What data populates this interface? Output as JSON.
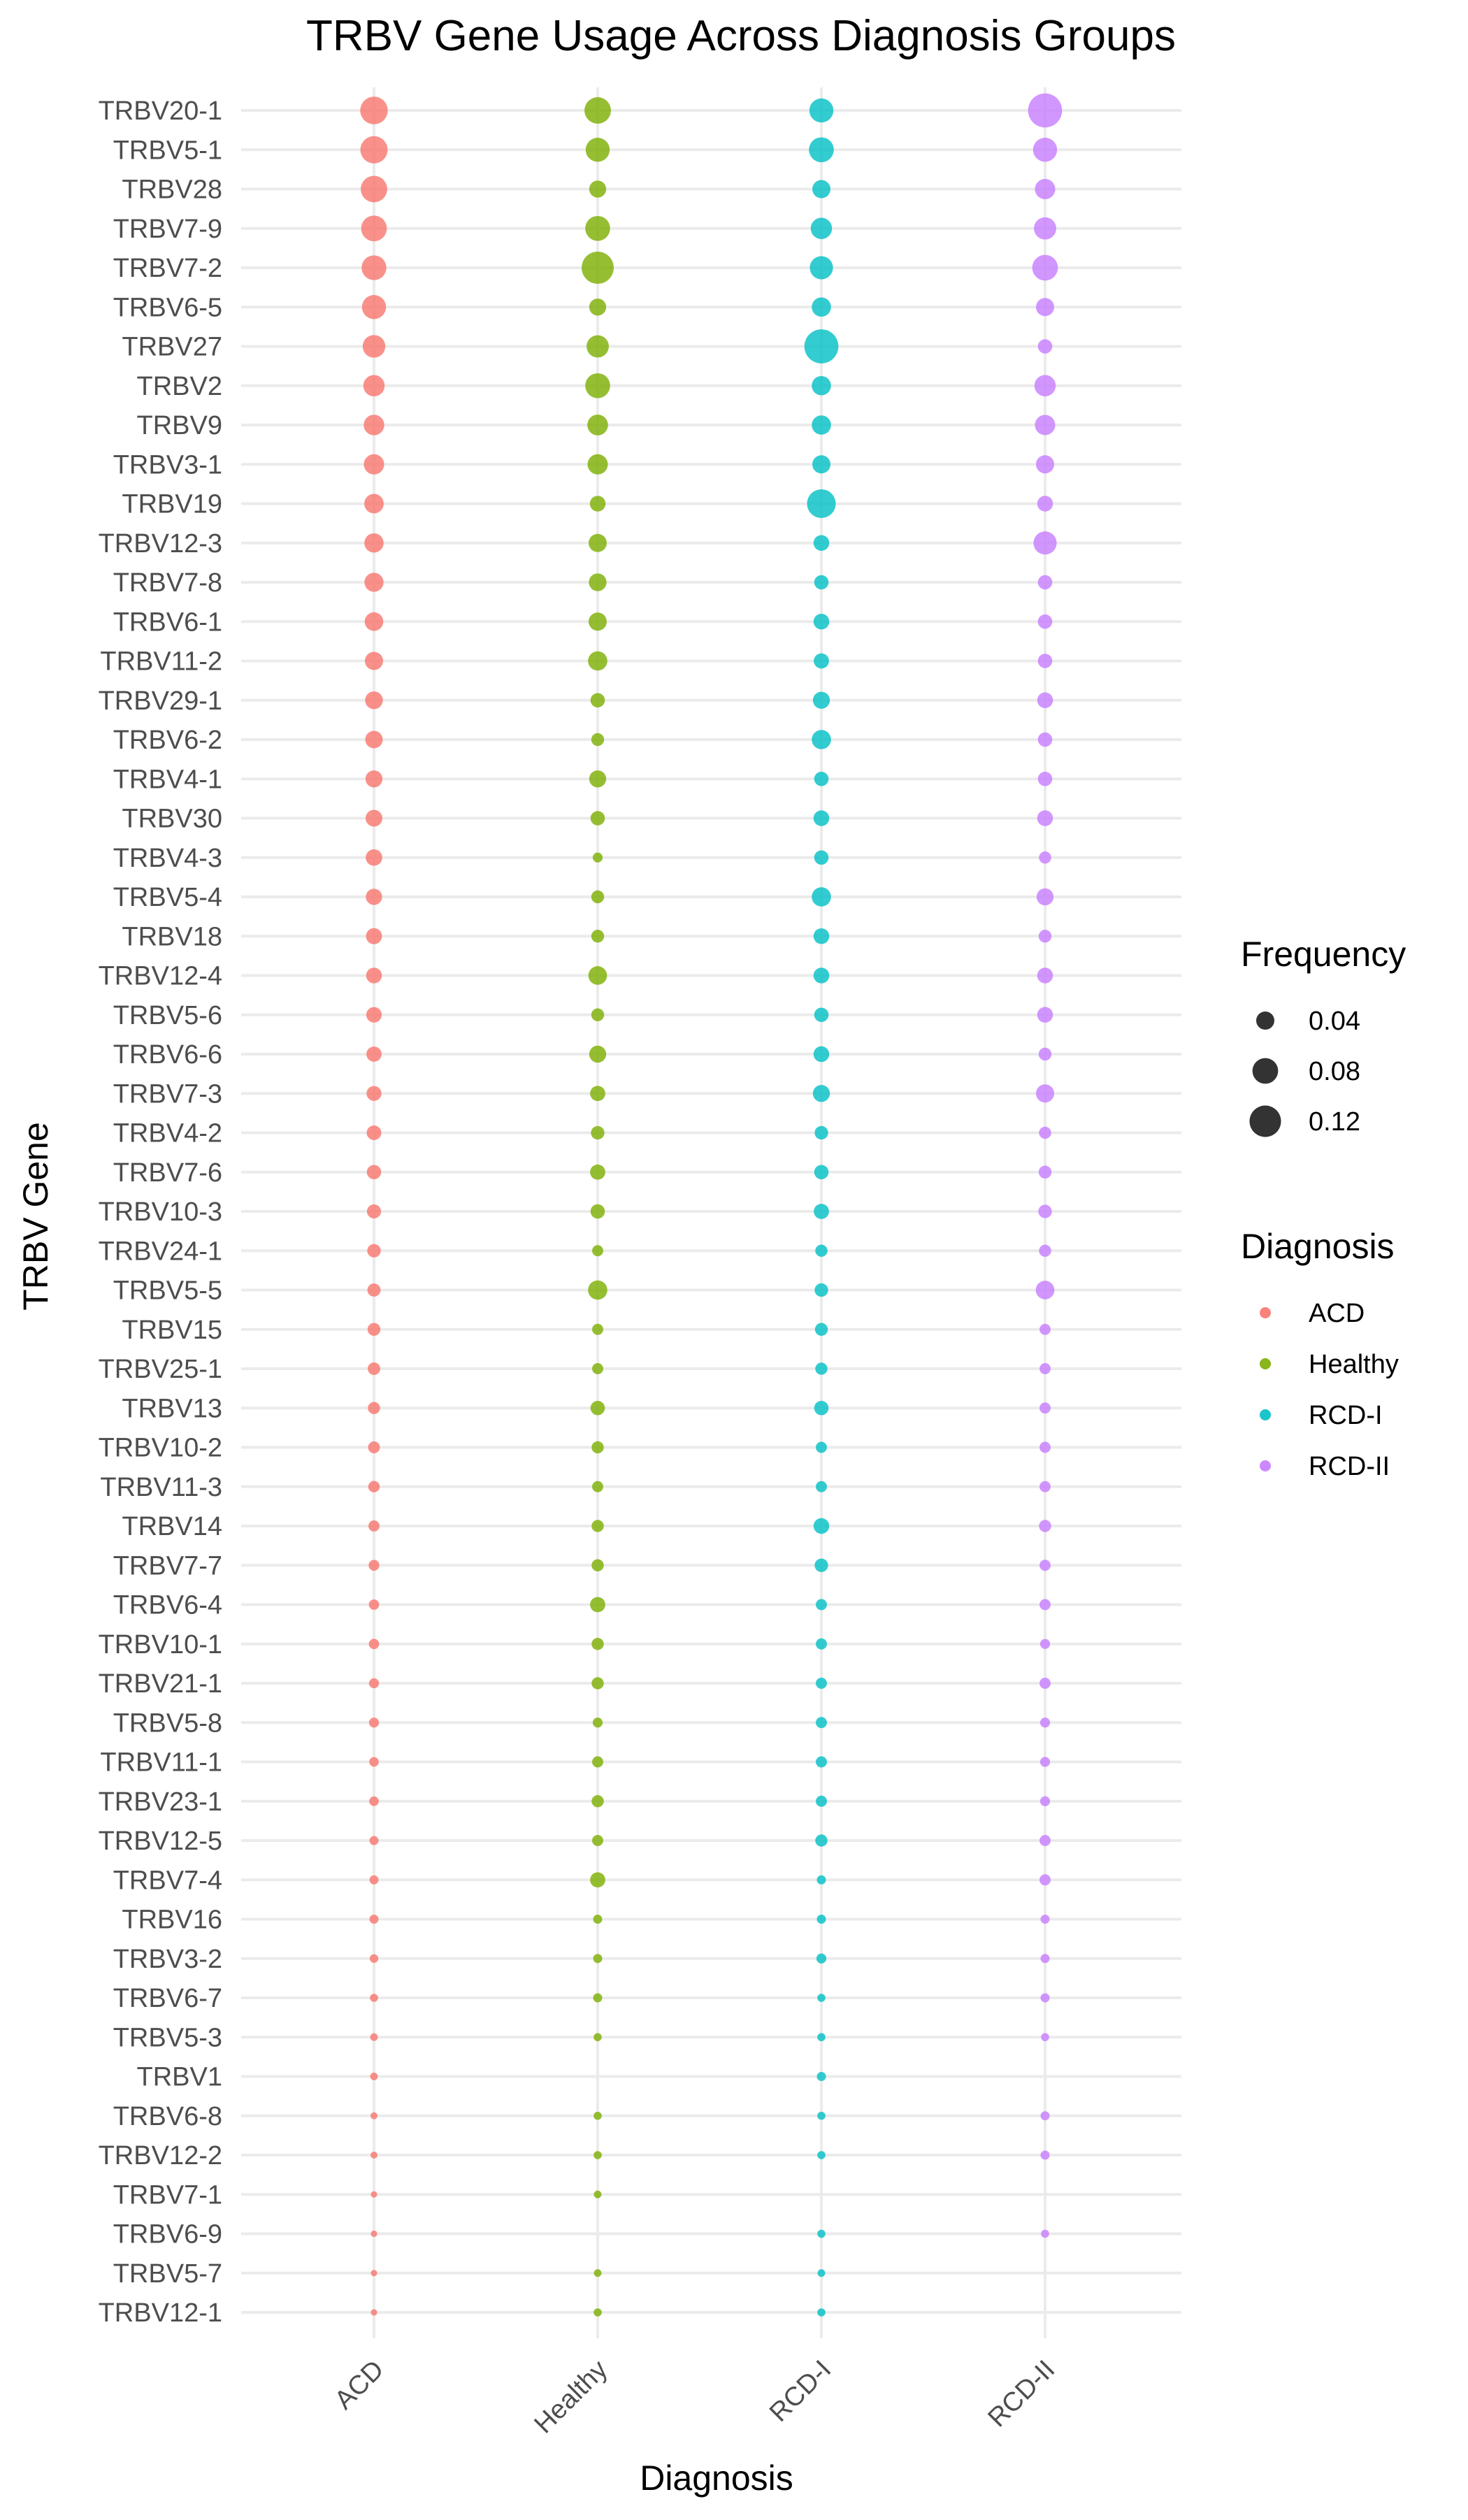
{
  "chart_data": {
    "type": "scatter",
    "title": "TRBV Gene Usage Across Diagnosis Groups",
    "xlabel": "Diagnosis",
    "ylabel": "TRBV Gene",
    "categories": [
      "ACD",
      "Healthy",
      "RCD-I",
      "RCD-II"
    ],
    "genes": [
      "TRBV20-1",
      "TRBV5-1",
      "TRBV28",
      "TRBV7-9",
      "TRBV7-2",
      "TRBV6-5",
      "TRBV27",
      "TRBV2",
      "TRBV9",
      "TRBV3-1",
      "TRBV19",
      "TRBV12-3",
      "TRBV7-8",
      "TRBV6-1",
      "TRBV11-2",
      "TRBV29-1",
      "TRBV6-2",
      "TRBV4-1",
      "TRBV30",
      "TRBV4-3",
      "TRBV5-4",
      "TRBV18",
      "TRBV12-4",
      "TRBV5-6",
      "TRBV6-6",
      "TRBV7-3",
      "TRBV4-2",
      "TRBV7-6",
      "TRBV10-3",
      "TRBV24-1",
      "TRBV5-5",
      "TRBV15",
      "TRBV25-1",
      "TRBV13",
      "TRBV10-2",
      "TRBV11-3",
      "TRBV14",
      "TRBV7-7",
      "TRBV6-4",
      "TRBV10-1",
      "TRBV21-1",
      "TRBV5-8",
      "TRBV11-1",
      "TRBV23-1",
      "TRBV12-5",
      "TRBV7-4",
      "TRBV16",
      "TRBV3-2",
      "TRBV6-7",
      "TRBV5-3",
      "TRBV1",
      "TRBV6-8",
      "TRBV12-2",
      "TRBV7-1",
      "TRBV6-9",
      "TRBV5-7",
      "TRBV12-1"
    ],
    "series": [
      {
        "name": "ACD",
        "color": "#F8766D",
        "values": [
          0.092,
          0.09,
          0.085,
          0.08,
          0.074,
          0.07,
          0.062,
          0.055,
          0.051,
          0.05,
          0.046,
          0.045,
          0.044,
          0.042,
          0.04,
          0.038,
          0.037,
          0.035,
          0.034,
          0.033,
          0.032,
          0.031,
          0.03,
          0.029,
          0.028,
          0.027,
          0.026,
          0.025,
          0.024,
          0.022,
          0.021,
          0.02,
          0.019,
          0.018,
          0.017,
          0.016,
          0.015,
          0.014,
          0.013,
          0.013,
          0.012,
          0.012,
          0.011,
          0.011,
          0.01,
          0.01,
          0.01,
          0.009,
          0.008,
          0.007,
          0.007,
          0.006,
          0.006,
          0.005,
          0.005,
          0.005,
          0.005
        ]
      },
      {
        "name": "Healthy",
        "color": "#7CAE00",
        "values": [
          0.085,
          0.07,
          0.035,
          0.075,
          0.125,
          0.035,
          0.06,
          0.075,
          0.052,
          0.05,
          0.03,
          0.04,
          0.038,
          0.04,
          0.045,
          0.025,
          0.02,
          0.035,
          0.025,
          0.012,
          0.02,
          0.02,
          0.042,
          0.02,
          0.035,
          0.028,
          0.022,
          0.028,
          0.025,
          0.015,
          0.045,
          0.015,
          0.015,
          0.025,
          0.018,
          0.015,
          0.018,
          0.018,
          0.028,
          0.018,
          0.018,
          0.012,
          0.015,
          0.018,
          0.015,
          0.028,
          0.01,
          0.01,
          0.01,
          0.008,
          null,
          0.008,
          0.008,
          0.007,
          null,
          0.007,
          0.008
        ]
      },
      {
        "name": "RCD-I",
        "color": "#00BFC4",
        "values": [
          0.07,
          0.075,
          0.04,
          0.055,
          0.065,
          0.045,
          0.14,
          0.045,
          0.045,
          0.04,
          0.1,
          0.03,
          0.025,
          0.03,
          0.028,
          0.035,
          0.045,
          0.025,
          0.03,
          0.025,
          0.045,
          0.03,
          0.03,
          0.025,
          0.03,
          0.035,
          0.022,
          0.025,
          0.028,
          0.018,
          0.022,
          0.02,
          0.018,
          0.025,
          0.015,
          0.015,
          0.03,
          0.022,
          0.015,
          0.015,
          0.015,
          0.015,
          0.015,
          0.015,
          0.018,
          0.01,
          0.01,
          0.012,
          0.008,
          0.008,
          0.01,
          0.008,
          0.008,
          null,
          0.008,
          0.007,
          0.008
        ]
      },
      {
        "name": "RCD-II",
        "color": "#C77CFF",
        "values": [
          0.14,
          0.07,
          0.05,
          0.06,
          0.08,
          0.04,
          0.025,
          0.055,
          0.05,
          0.04,
          0.03,
          0.065,
          0.025,
          0.025,
          0.025,
          0.03,
          0.025,
          0.025,
          0.03,
          0.018,
          0.035,
          0.02,
          0.03,
          0.03,
          0.02,
          0.04,
          0.018,
          0.02,
          0.022,
          0.018,
          0.042,
          0.015,
          0.015,
          0.015,
          0.015,
          0.015,
          0.018,
          0.015,
          0.015,
          0.012,
          0.015,
          0.012,
          0.012,
          0.012,
          0.015,
          0.015,
          0.01,
          0.01,
          0.01,
          0.008,
          null,
          0.01,
          0.01,
          null,
          0.008,
          null,
          null
        ]
      }
    ],
    "size_legend": {
      "title": "Frequency",
      "breaks": [
        0.04,
        0.08,
        0.12
      ],
      "labels": [
        "0.04",
        "0.08",
        "0.12"
      ],
      "color": "#000000"
    },
    "color_legend": {
      "title": "Diagnosis",
      "entries": [
        "ACD",
        "Healthy",
        "RCD-I",
        "RCD-II"
      ]
    },
    "legend_position": "right",
    "grid": true,
    "background": "#FFFFFF"
  }
}
